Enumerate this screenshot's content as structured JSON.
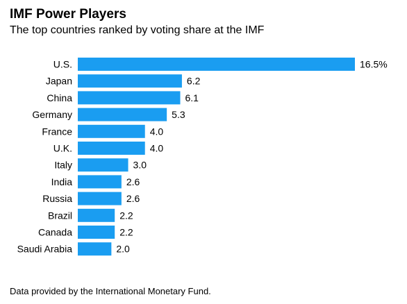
{
  "header": {
    "title": "IMF Power Players",
    "subtitle": "The top countries ranked by voting share at the IMF"
  },
  "footnote": "Data provided by the International Monetary Fund.",
  "chart_data": {
    "type": "bar",
    "orientation": "horizontal",
    "title": "IMF Power Players",
    "subtitle": "The top countries ranked by voting share at the IMF",
    "categories": [
      "U.S.",
      "Japan",
      "China",
      "Germany",
      "France",
      "U.K.",
      "Italy",
      "India",
      "Russia",
      "Brazil",
      "Canada",
      "Saudi Arabia"
    ],
    "values": [
      16.5,
      6.2,
      6.1,
      5.3,
      4.0,
      4.0,
      3.0,
      2.6,
      2.6,
      2.2,
      2.2,
      2.0
    ],
    "value_labels": [
      "16.5%",
      "6.2",
      "6.1",
      "5.3",
      "4.0",
      "4.0",
      "3.0",
      "2.6",
      "2.6",
      "2.2",
      "2.2",
      "2.0"
    ],
    "xlim": [
      0,
      16.5
    ],
    "grid": false,
    "bar_color": "#1a9df1"
  }
}
